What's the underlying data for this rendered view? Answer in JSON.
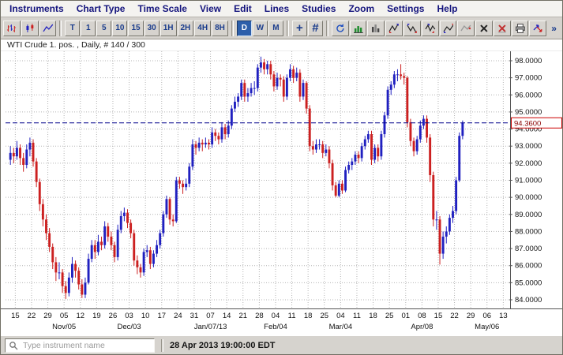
{
  "menu": {
    "items": [
      "Instruments",
      "Chart Type",
      "Time Scale",
      "View",
      "Edit",
      "Lines",
      "Studies",
      "Zoom",
      "Settings",
      "Help"
    ]
  },
  "toolbar": {
    "intervals_small": [
      "T",
      "1",
      "5",
      "10",
      "15",
      "30",
      "1H",
      "2H",
      "4H",
      "8H"
    ],
    "intervals_large": [
      "D",
      "W",
      "M"
    ],
    "selected_interval": "D",
    "crosshair_label": "+",
    "hash_label": "#",
    "overflow_label": "»"
  },
  "chart": {
    "title": "WTI Crude 1. pos. , Daily, # 140 / 300"
  },
  "statusbar": {
    "search_placeholder": "Type instrument name",
    "timestamp": "28 Apr 2013 19:00:00 EDT"
  },
  "chart_data": {
    "type": "candlestick",
    "title": "WTI Crude 1. pos. , Daily, # 140 / 300",
    "instrument": "WTI Crude 1. pos.",
    "interval": "Daily",
    "bars_shown": "140 / 300",
    "ylim": [
      83.5,
      98.6
    ],
    "grid": true,
    "last_price": {
      "value": 94.36,
      "label": "94.3600"
    },
    "y_ticks": [
      {
        "v": 98,
        "label": "98.0000"
      },
      {
        "v": 97,
        "label": "97.0000"
      },
      {
        "v": 96,
        "label": "96.0000"
      },
      {
        "v": 95,
        "label": "95.0000"
      },
      {
        "v": 94,
        "label": "94.0000"
      },
      {
        "v": 93,
        "label": "93.0000"
      },
      {
        "v": 92,
        "label": "92.0000"
      },
      {
        "v": 91,
        "label": "91.0000"
      },
      {
        "v": 90,
        "label": "90.0000"
      },
      {
        "v": 89,
        "label": "89.0000"
      },
      {
        "v": 88,
        "label": "88.0000"
      },
      {
        "v": 87,
        "label": "87.0000"
      },
      {
        "v": 86,
        "label": "86.0000"
      },
      {
        "v": 85,
        "label": "85.0000"
      },
      {
        "v": 84,
        "label": "84.0000"
      }
    ],
    "week_labels": [
      "15",
      "22",
      "29",
      "05",
      "12",
      "19",
      "26",
      "03",
      "10",
      "17",
      "24",
      "31",
      "07",
      "14",
      "21",
      "28",
      "04",
      "11",
      "18",
      "25",
      "04",
      "11",
      "18",
      "25",
      "01",
      "08",
      "15",
      "22",
      "29",
      "06",
      "13"
    ],
    "month_labels": [
      {
        "w": 3,
        "label": "Nov/05"
      },
      {
        "w": 7,
        "label": "Dec/03"
      },
      {
        "w": 12,
        "label": "Jan/07/13"
      },
      {
        "w": 16,
        "label": "Feb/04"
      },
      {
        "w": 20,
        "label": "Mar/04"
      },
      {
        "w": 25,
        "label": "Apr/08"
      },
      {
        "w": 29,
        "label": "May/06"
      }
    ],
    "colors": {
      "up_candle": "#2020c0",
      "down_candle": "#cc2020",
      "grid": "#b4b4b4",
      "dashed_line": "#00008b",
      "price_box_border": "#cc0000",
      "price_box_text": "#8b0000",
      "axis_text": "#111111"
    },
    "candles": [
      [
        92.2,
        93.0,
        91.9,
        92.6
      ],
      [
        92.6,
        92.9,
        92.0,
        92.4
      ],
      [
        92.4,
        93.3,
        92.2,
        92.9
      ],
      [
        92.9,
        93.1,
        91.9,
        92.3
      ],
      [
        92.3,
        92.6,
        91.5,
        91.9
      ],
      [
        91.9,
        93.1,
        91.7,
        92.8
      ],
      [
        92.8,
        93.5,
        92.4,
        93.2
      ],
      [
        93.2,
        93.4,
        91.8,
        92.1
      ],
      [
        92.1,
        92.3,
        90.6,
        90.9
      ],
      [
        90.9,
        91.1,
        89.2,
        89.6
      ],
      [
        89.6,
        89.9,
        88.3,
        88.7
      ],
      [
        88.7,
        89.0,
        87.5,
        87.9
      ],
      [
        87.9,
        88.2,
        86.8,
        87.1
      ],
      [
        87.1,
        87.3,
        85.8,
        86.2
      ],
      [
        86.2,
        86.5,
        85.1,
        85.6
      ],
      [
        85.6,
        86.2,
        85.2,
        85.6
      ],
      [
        85.6,
        85.8,
        84.4,
        84.8
      ],
      [
        84.8,
        85.1,
        84.05,
        84.4
      ],
      [
        84.4,
        85.6,
        84.2,
        85.3
      ],
      [
        85.3,
        86.5,
        85.0,
        86.1
      ],
      [
        86.1,
        86.3,
        85.3,
        85.7
      ],
      [
        85.7,
        85.9,
        84.6,
        84.9
      ],
      [
        84.9,
        85.2,
        84.1,
        84.3
      ],
      [
        84.3,
        85.3,
        84.1,
        85.0
      ],
      [
        85.0,
        86.7,
        84.9,
        86.4
      ],
      [
        86.4,
        87.5,
        86.2,
        87.2
      ],
      [
        87.2,
        87.5,
        86.4,
        86.8
      ],
      [
        86.8,
        87.8,
        86.6,
        87.4
      ],
      [
        87.4,
        87.7,
        86.9,
        87.2
      ],
      [
        87.2,
        88.6,
        87.0,
        88.3
      ],
      [
        88.3,
        88.5,
        87.4,
        87.7
      ],
      [
        87.7,
        88.0,
        86.9,
        87.2
      ],
      [
        87.2,
        87.4,
        86.2,
        86.5
      ],
      [
        86.5,
        88.4,
        86.3,
        88.1
      ],
      [
        88.1,
        89.2,
        87.9,
        88.9
      ],
      [
        88.9,
        89.4,
        88.6,
        89.1
      ],
      [
        89.1,
        89.3,
        88.2,
        88.5
      ],
      [
        88.5,
        88.7,
        87.6,
        87.9
      ],
      [
        87.9,
        88.1,
        86.0,
        86.3
      ],
      [
        86.3,
        86.6,
        85.5,
        85.9
      ],
      [
        85.9,
        86.1,
        85.3,
        85.6
      ],
      [
        85.6,
        87.0,
        85.4,
        86.8
      ],
      [
        86.8,
        87.2,
        86.5,
        86.9
      ],
      [
        86.9,
        87.1,
        85.8,
        86.1
      ],
      [
        86.1,
        86.9,
        85.9,
        86.7
      ],
      [
        86.7,
        87.5,
        86.5,
        87.2
      ],
      [
        87.2,
        88.1,
        87.0,
        87.9
      ],
      [
        87.9,
        89.2,
        87.7,
        89.0
      ],
      [
        89.0,
        90.1,
        88.8,
        89.9
      ],
      [
        89.9,
        90.0,
        88.4,
        88.7
      ],
      [
        88.7,
        89.0,
        88.3,
        88.6
      ],
      [
        88.6,
        91.2,
        88.5,
        91.0
      ],
      [
        91.0,
        91.2,
        90.5,
        90.8
      ],
      [
        90.8,
        91.0,
        90.2,
        90.6
      ],
      [
        90.6,
        91.1,
        90.4,
        90.8
      ],
      [
        90.8,
        92.0,
        90.6,
        91.8
      ],
      [
        91.8,
        93.4,
        91.6,
        93.1
      ],
      [
        93.1,
        93.3,
        92.5,
        92.9
      ],
      [
        92.9,
        93.5,
        92.7,
        93.2
      ],
      [
        93.2,
        93.4,
        92.7,
        93.1
      ],
      [
        93.1,
        93.5,
        92.9,
        93.2
      ],
      [
        93.2,
        93.4,
        92.8,
        93.1
      ],
      [
        93.1,
        94.1,
        92.9,
        93.8
      ],
      [
        93.8,
        94.0,
        93.3,
        93.6
      ],
      [
        93.6,
        93.8,
        93.1,
        93.4
      ],
      [
        93.4,
        94.4,
        93.2,
        94.1
      ],
      [
        94.1,
        94.3,
        93.4,
        93.7
      ],
      [
        93.7,
        94.5,
        93.5,
        94.2
      ],
      [
        94.2,
        95.4,
        94.0,
        95.2
      ],
      [
        95.2,
        95.9,
        95.0,
        95.6
      ],
      [
        95.6,
        96.1,
        95.3,
        95.9
      ],
      [
        95.9,
        96.9,
        95.7,
        96.7
      ],
      [
        96.7,
        96.9,
        95.6,
        95.9
      ],
      [
        95.9,
        96.4,
        95.6,
        96.1
      ],
      [
        96.1,
        96.7,
        95.9,
        96.4
      ],
      [
        96.4,
        96.8,
        96.0,
        96.4
      ],
      [
        96.4,
        97.8,
        96.2,
        97.6
      ],
      [
        97.6,
        98.24,
        97.3,
        97.9
      ],
      [
        97.9,
        98.1,
        97.2,
        97.5
      ],
      [
        97.5,
        98.0,
        97.2,
        97.8
      ],
      [
        97.8,
        98.0,
        96.9,
        97.2
      ],
      [
        97.2,
        97.4,
        96.2,
        96.5
      ],
      [
        96.5,
        97.3,
        96.3,
        97.0
      ],
      [
        97.0,
        97.2,
        96.5,
        96.9
      ],
      [
        96.9,
        97.1,
        95.6,
        95.9
      ],
      [
        95.9,
        97.2,
        95.7,
        97.0
      ],
      [
        97.0,
        97.8,
        96.8,
        97.5
      ],
      [
        97.5,
        97.7,
        96.7,
        97.0
      ],
      [
        97.0,
        97.6,
        96.8,
        97.3
      ],
      [
        97.3,
        97.5,
        95.6,
        95.9
      ],
      [
        95.9,
        96.9,
        95.7,
        96.7
      ],
      [
        96.7,
        96.8,
        94.9,
        95.2
      ],
      [
        95.2,
        95.4,
        92.7,
        93.0
      ],
      [
        93.0,
        93.3,
        92.5,
        92.8
      ],
      [
        92.8,
        93.4,
        92.6,
        93.1
      ],
      [
        93.1,
        93.4,
        92.8,
        93.1
      ],
      [
        93.1,
        93.3,
        92.3,
        92.6
      ],
      [
        92.6,
        93.1,
        92.4,
        92.8
      ],
      [
        92.8,
        93.0,
        91.7,
        92.0
      ],
      [
        92.0,
        92.2,
        90.4,
        90.7
      ],
      [
        90.7,
        90.9,
        90.0,
        90.1
      ],
      [
        90.1,
        91.0,
        90.0,
        90.8
      ],
      [
        90.8,
        91.0,
        90.2,
        90.4
      ],
      [
        90.4,
        91.8,
        90.3,
        91.6
      ],
      [
        91.6,
        92.1,
        91.4,
        91.9
      ],
      [
        91.9,
        92.3,
        91.6,
        92.1
      ],
      [
        92.1,
        92.7,
        91.9,
        92.5
      ],
      [
        92.5,
        92.7,
        92.0,
        92.3
      ],
      [
        92.3,
        93.2,
        92.1,
        93.0
      ],
      [
        93.0,
        93.6,
        92.8,
        93.4
      ],
      [
        93.4,
        93.9,
        93.2,
        93.7
      ],
      [
        93.7,
        93.9,
        91.9,
        92.2
      ],
      [
        92.2,
        93.1,
        92.0,
        92.9
      ],
      [
        92.9,
        93.1,
        92.1,
        92.4
      ],
      [
        92.4,
        93.9,
        92.2,
        93.7
      ],
      [
        93.7,
        95.0,
        93.5,
        94.8
      ],
      [
        94.8,
        96.5,
        94.6,
        96.3
      ],
      [
        96.3,
        96.8,
        96.0,
        96.6
      ],
      [
        96.6,
        97.4,
        96.4,
        97.2
      ],
      [
        97.2,
        97.5,
        96.8,
        97.2
      ],
      [
        97.2,
        97.8,
        96.9,
        97.1
      ],
      [
        97.1,
        97.3,
        96.6,
        97.0
      ],
      [
        97.0,
        97.1,
        94.1,
        94.4
      ],
      [
        94.4,
        94.6,
        93.0,
        93.3
      ],
      [
        93.3,
        93.5,
        92.4,
        92.7
      ],
      [
        92.7,
        93.6,
        92.5,
        93.4
      ],
      [
        93.4,
        94.5,
        93.2,
        94.2
      ],
      [
        94.2,
        94.8,
        94.0,
        94.6
      ],
      [
        94.6,
        94.8,
        93.2,
        93.5
      ],
      [
        93.5,
        93.7,
        90.9,
        91.3
      ],
      [
        91.3,
        91.5,
        88.3,
        88.7
      ],
      [
        88.7,
        89.2,
        88.1,
        88.7
      ],
      [
        88.7,
        88.9,
        86.06,
        86.7
      ],
      [
        86.7,
        88.0,
        86.4,
        87.7
      ],
      [
        87.7,
        88.3,
        87.3,
        88.0
      ],
      [
        88.0,
        89.0,
        87.8,
        88.8
      ],
      [
        88.8,
        89.5,
        88.5,
        89.2
      ],
      [
        89.2,
        91.2,
        89.0,
        91.0
      ],
      [
        91.0,
        93.8,
        90.9,
        93.6
      ],
      [
        93.6,
        94.5,
        93.4,
        94.36
      ]
    ]
  }
}
